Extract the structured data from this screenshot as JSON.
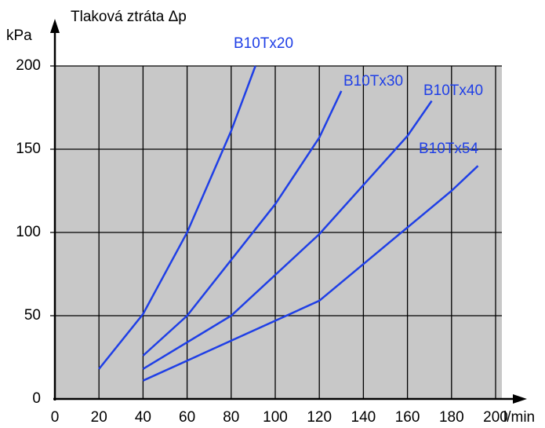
{
  "chart_data": {
    "type": "line",
    "title": "Tlaková ztráta Δp",
    "ylabel": "kPa",
    "xlabel": "l/min",
    "xlim": [
      0,
      200
    ],
    "ylim": [
      0,
      200
    ],
    "xticks": [
      0,
      20,
      40,
      60,
      80,
      100,
      120,
      140,
      160,
      180,
      200
    ],
    "yticks": [
      0,
      50,
      100,
      150,
      200
    ],
    "grid": true,
    "series": [
      {
        "name": "B10Tx20",
        "color": "#1f3fe6",
        "x": [
          20,
          40,
          60,
          80,
          91
        ],
        "values": [
          18,
          51,
          100,
          161,
          200
        ]
      },
      {
        "name": "B10Tx30",
        "color": "#1f3fe6",
        "x": [
          40,
          60,
          100,
          120,
          130
        ],
        "values": [
          26,
          50,
          117,
          157,
          185
        ]
      },
      {
        "name": "B10Tx40",
        "color": "#1f3fe6",
        "x": [
          40,
          80,
          120,
          160,
          171
        ],
        "values": [
          18,
          50,
          99,
          158,
          179
        ]
      },
      {
        "name": "B10Tx54",
        "color": "#1f3fe6",
        "x": [
          40,
          120,
          180,
          192
        ],
        "values": [
          11,
          59,
          125,
          140
        ]
      }
    ]
  }
}
